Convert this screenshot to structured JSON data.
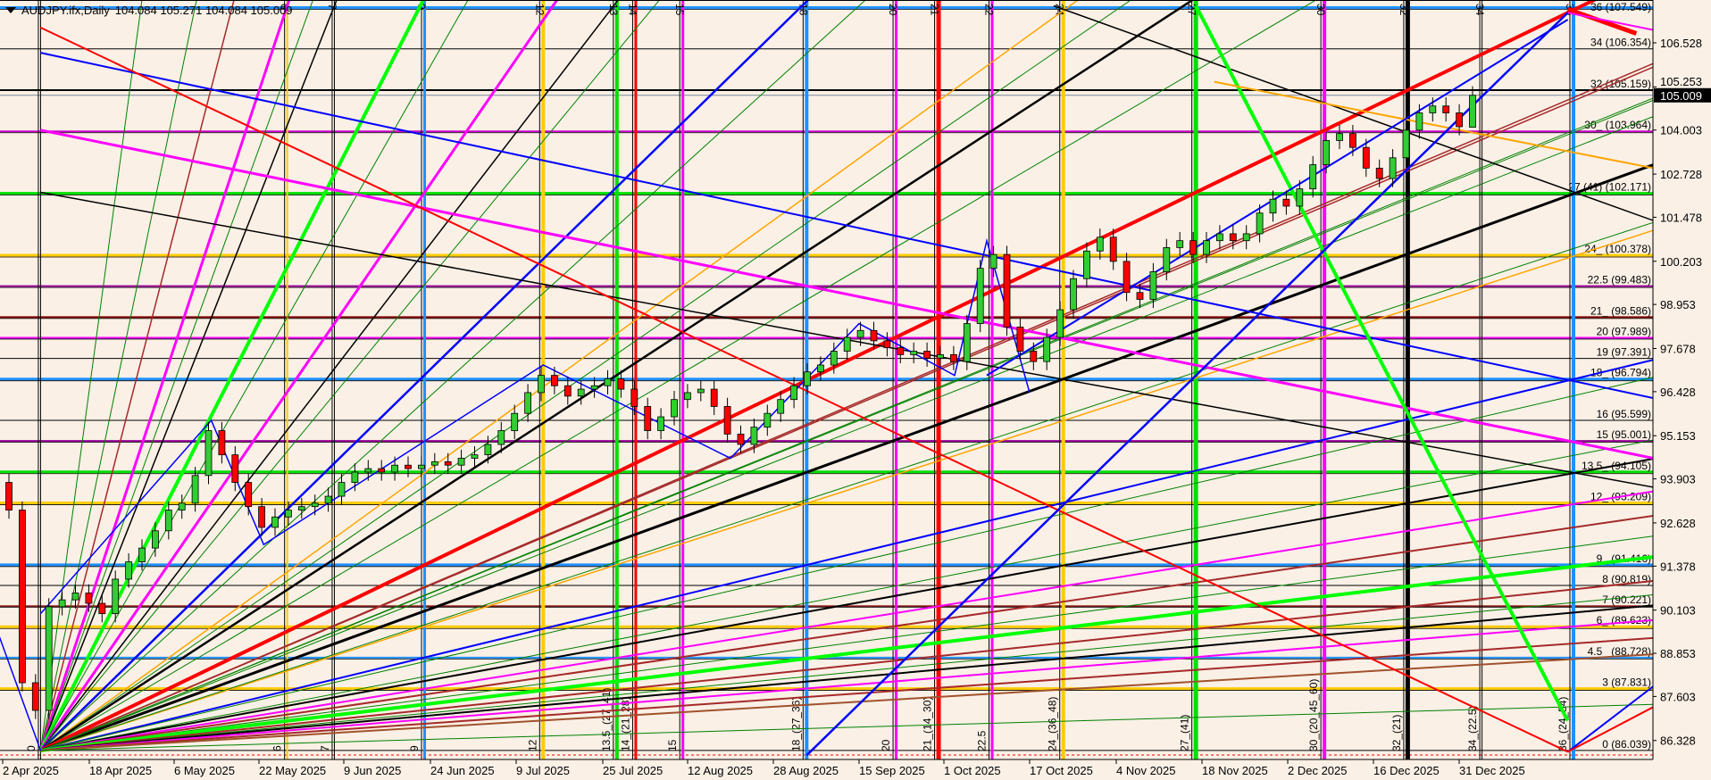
{
  "header": {
    "symbol": "AUDJPY.ifx,Daily",
    "ohlc": "104.084 105.271 104.084 105.009"
  },
  "chart_data": {
    "type": "candlestick",
    "symbol": "AUDJPY.ifx",
    "timeframe": "Daily",
    "last_bar": {
      "open": 104.084,
      "high": 105.271,
      "low": 104.084,
      "close": 105.009
    },
    "bid": 105.009,
    "ylim": [
      85.8,
      107.7
    ],
    "first_open": 93.8,
    "closes": [
      93.0,
      88.0,
      87.2,
      90.2,
      90.4,
      90.6,
      90.3,
      90.0,
      91.0,
      91.5,
      91.9,
      92.4,
      93.0,
      93.2,
      94.0,
      95.3,
      94.6,
      93.8,
      93.1,
      92.5,
      92.8,
      93.0,
      93.1,
      93.2,
      93.4,
      93.8,
      94.1,
      94.2,
      94.1,
      94.3,
      94.2,
      94.3,
      94.4,
      94.3,
      94.5,
      94.6,
      94.9,
      95.3,
      95.8,
      96.4,
      96.9,
      96.6,
      96.3,
      96.5,
      96.6,
      96.8,
      96.5,
      96.0,
      95.3,
      95.7,
      96.2,
      96.4,
      96.5,
      96.0,
      95.2,
      94.9,
      95.4,
      95.8,
      96.2,
      96.6,
      97.0,
      97.2,
      97.6,
      98.0,
      98.2,
      97.9,
      97.7,
      97.5,
      97.6,
      97.4,
      97.5,
      97.3,
      98.4,
      100.0,
      100.4,
      98.3,
      97.6,
      97.3,
      98.0,
      98.8,
      99.7,
      100.5,
      100.9,
      100.2,
      99.3,
      99.1,
      99.9,
      100.6,
      100.8,
      100.4,
      100.8,
      101.0,
      100.8,
      101.0,
      101.6,
      102.0,
      101.8,
      102.3,
      103.0,
      103.7,
      103.9,
      103.5,
      102.9,
      102.6,
      103.2,
      104.0,
      104.5,
      104.7,
      104.5,
      104.1,
      105.009
    ],
    "colors": {
      "bull": "#32cd32",
      "bear": "#ff0000",
      "outline": "#000000",
      "background": "#faf0e6",
      "bid_line": "#778899"
    },
    "price_ticks": [
      "106.528",
      "105.253",
      "104.003",
      "102.728",
      "101.478",
      "100.203",
      "98.953",
      "97.678",
      "96.428",
      "95.153",
      "93.903",
      "92.628",
      "91.378",
      "90.103",
      "88.853",
      "87.603",
      "86.328"
    ],
    "date_ticks": [
      {
        "label": "2 Apr 2025",
        "date": "2025-04-02"
      },
      {
        "label": "18 Apr 2025",
        "date": "2025-04-18"
      },
      {
        "label": "6 May 2025",
        "date": "2025-05-06"
      },
      {
        "label": "22 May 2025",
        "date": "2025-05-22"
      },
      {
        "label": "9 Jun 2025",
        "date": "2025-06-09"
      },
      {
        "label": "24 Jun 2025",
        "date": "2025-06-24"
      },
      {
        "label": "9 Jul 2025",
        "date": "2025-07-09"
      },
      {
        "label": "25 Jul 2025",
        "date": "2025-07-25"
      },
      {
        "label": "12 Aug 2025",
        "date": "2025-08-12"
      },
      {
        "label": "28 Aug 2025",
        "date": "2025-08-28"
      },
      {
        "label": "15 Sep 2025",
        "date": "2025-09-15"
      },
      {
        "label": "1 Oct 2025",
        "date": "2025-10-01"
      },
      {
        "label": "17 Oct 2025",
        "date": "2025-10-17"
      },
      {
        "label": "4 Nov 2025",
        "date": "2025-11-04"
      },
      {
        "label": "18 Nov 2025",
        "date": "2025-11-18"
      },
      {
        "label": "2 Dec 2025",
        "date": "2025-12-02"
      },
      {
        "label": "16 Dec 2025",
        "date": "2025-12-16"
      },
      {
        "label": "31 Dec 2025",
        "date": "2025-12-31"
      }
    ],
    "levels": [
      {
        "label": "36 (107.549)",
        "price": 107.549,
        "color": "#1e90ff",
        "w": 3
      },
      {
        "label": "34 (106.354)",
        "price": 106.354,
        "color": "#000000",
        "w": 1
      },
      {
        "label": "32 (105.159)",
        "price": 105.159,
        "color": "#000000",
        "w": 2
      },
      {
        "label": "30_ (103.964)",
        "price": 103.964,
        "color": "#cc00cc",
        "w": 2
      },
      {
        "label": "27 (41) (102.171)",
        "price": 102.171,
        "color": "#00e000",
        "w": 3
      },
      {
        "label": "24_ (100.378)",
        "price": 100.378,
        "color": "#ffcc00",
        "w": 3
      },
      {
        "label": "22.5 (99.483)",
        "price": 99.483,
        "color": "#990099",
        "w": 2
      },
      {
        "label": "21_ (98.586)",
        "price": 98.586,
        "color": "#800000",
        "w": 2
      },
      {
        "label": "20 (97.989)",
        "price": 97.989,
        "color": "#ff00ff",
        "w": 2
      },
      {
        "label": "19 (97.391)",
        "price": 97.391,
        "color": "#000000",
        "w": 1
      },
      {
        "label": "18_ (96.794)",
        "price": 96.794,
        "color": "#1e90ff",
        "w": 3
      },
      {
        "label": "16 (95.599)",
        "price": 95.599,
        "color": "#000000",
        "w": 1
      },
      {
        "label": "15 (95.001)",
        "price": 95.001,
        "color": "#990099",
        "w": 2
      },
      {
        "label": "13.5_ (94.105)",
        "price": 94.105,
        "color": "#00e000",
        "w": 3
      },
      {
        "label": "12_ (93.209)",
        "price": 93.209,
        "color": "#ffcc00",
        "w": 3
      },
      {
        "label": "9_ (91.416)",
        "price": 91.416,
        "color": "#1e90ff",
        "w": 3
      },
      {
        "label": "8 (90.819)",
        "price": 90.819,
        "color": "#000000",
        "w": 1
      },
      {
        "label": "7 (90.221)",
        "price": 90.221,
        "color": "#800000",
        "w": 1.5
      },
      {
        "label": "6_ (89.623)",
        "price": 89.623,
        "color": "#ffcc00",
        "w": 3
      },
      {
        "label": "4.5_ (88.728)",
        "price": 88.728,
        "color": "#1e90ff",
        "w": 2
      },
      {
        "label": "3 (87.831)",
        "price": 87.831,
        "color": "#ffcc00",
        "w": 3
      },
      {
        "label": "0 (86.039)",
        "price": 86.039,
        "color": "#000000",
        "w": 1
      }
    ],
    "verticals": [
      {
        "top": "",
        "bottom": "0",
        "date": "2025-04-09",
        "color": "#000000",
        "w": 1
      },
      {
        "top": "6",
        "bottom": "6",
        "date": "2025-05-28",
        "color": "#ffcc00",
        "w": 2
      },
      {
        "top": "7",
        "bottom": "7",
        "date": "2025-06-07",
        "color": "#000000",
        "w": 1
      },
      {
        "top": "9",
        "bottom": "9",
        "date": "2025-06-23",
        "color": "#1e90ff",
        "w": 3
      },
      {
        "top": "12",
        "bottom": "12",
        "date": "2025-07-14",
        "color": "#ffcc00",
        "w": 4
      },
      {
        "top": "13",
        "bottom": "13.5_(27_41)",
        "date": "2025-07-28",
        "color": "#00e000",
        "w": 4
      },
      {
        "top": "14",
        "bottom": "14_(21_28)",
        "date": "2025-08-01",
        "color": "#ff0000",
        "w": 3
      },
      {
        "top": "15",
        "bottom": "15",
        "date": "2025-08-11",
        "color": "#ff00ff",
        "w": 3
      },
      {
        "top": "18",
        "bottom": "18_(27_36)",
        "date": "2025-09-04",
        "color": "#1e90ff",
        "w": 4
      },
      {
        "top": "20",
        "bottom": "20",
        "date": "2025-09-22",
        "color": "#ff00ff",
        "w": 3
      },
      {
        "top": "21",
        "bottom": "21_(14_30)",
        "date": "2025-09-30",
        "color": "#ff0000",
        "w": 5
      },
      {
        "top": "22",
        "bottom": "22.5",
        "date": "2025-10-10",
        "color": "#ff00ff",
        "w": 3
      },
      {
        "top": "24",
        "bottom": "24_(36_48)",
        "date": "2025-10-24",
        "color": "#ffcc00",
        "w": 4
      },
      {
        "top": "27",
        "bottom": "27_(41)",
        "date": "2025-11-17",
        "color": "#00e000",
        "w": 5
      },
      {
        "top": "30",
        "bottom": "30_(20_45_60)",
        "date": "2025-12-08",
        "color": "#ff00ff",
        "w": 4
      },
      {
        "top": "32",
        "bottom": "32_(21)",
        "date": "2025-12-22",
        "color": "#000000",
        "w": 5
      },
      {
        "top": "34",
        "bottom": "34_(22.5)",
        "date": "2026-01-04",
        "color": "#000000",
        "w": 1
      },
      {
        "top": "36",
        "bottom": "36_(24_54)",
        "date": "2026-01-20",
        "color": "#1e90ff",
        "w": 4
      }
    ],
    "fan": {
      "origin": {
        "date": "2025-04-09",
        "price": 86.039
      },
      "rays": [
        {
          "date": "2025-04-29",
          "price": 107.6,
          "color": "#008000",
          "w": 1
        },
        {
          "date": "2025-05-10",
          "price": 107.6,
          "color": "#008000",
          "w": 1
        },
        {
          "date": "2025-05-17",
          "price": 107.6,
          "color": "#a52a2a",
          "w": 1.5
        },
        {
          "date": "2025-05-28",
          "price": 107.6,
          "color": "#ff00ff",
          "w": 3
        },
        {
          "date": "2025-06-02",
          "price": 107.6,
          "color": "#008000",
          "w": 1
        },
        {
          "date": "2025-06-07",
          "price": 107.6,
          "color": "#000000",
          "w": 1.5
        },
        {
          "date": "2025-06-21",
          "price": 107.19,
          "color": "#00ff00",
          "w": 4
        },
        {
          "date": "2025-06-30",
          "price": 107.6,
          "color": "#008000",
          "w": 1
        },
        {
          "date": "2025-07-14",
          "price": 107.19,
          "color": "#ff00ff",
          "w": 3
        },
        {
          "date": "2025-07-25",
          "price": 107.19,
          "color": "#000000",
          "w": 1.5
        },
        {
          "date": "2025-08-05",
          "price": 107.6,
          "color": "#008000",
          "w": 1
        },
        {
          "date": "2025-08-31",
          "price": 107.19,
          "color": "#0000ff",
          "w": 2.5
        },
        {
          "date": "2025-09-15",
          "price": 107.6,
          "color": "#008000",
          "w": 1
        },
        {
          "date": "2025-10-20",
          "price": 107.06,
          "color": "#ffa500",
          "w": 1.5
        },
        {
          "date": "2025-11-05",
          "price": 107.6,
          "color": "#008000",
          "w": 1
        },
        {
          "date": "2025-11-15",
          "price": 107.6,
          "color": "#000000",
          "w": 2.5
        },
        {
          "date": "2025-12-05",
          "price": 107.6,
          "color": "#008000",
          "w": 1
        },
        {
          "date": "2026-01-19",
          "price": 107.4,
          "color": "#ff0000",
          "w": 4
        },
        {
          "date": "2026-02-03",
          "price": 105.83,
          "color": "#a52a2a",
          "w": 1.5
        },
        {
          "date": "2026-02-03",
          "price": 104.93,
          "color": "#008000",
          "w": 1
        },
        {
          "date": "2025-12-22",
          "price": 102.9,
          "color": "#a52a2a",
          "w": 1.5
        },
        {
          "date": "2026-02-03",
          "price": 103.0,
          "color": "#000000",
          "w": 3
        },
        {
          "date": "2025-12-22",
          "price": 102.0,
          "color": "#008000",
          "w": 1
        },
        {
          "date": "2025-12-22",
          "price": 101.6,
          "color": "#008000",
          "w": 1
        },
        {
          "date": "2026-02-03",
          "price": 101.1,
          "color": "#ffa500",
          "w": 1.5
        },
        {
          "date": "2025-12-22",
          "price": 99.0,
          "color": "#008000",
          "w": 1
        },
        {
          "date": "2026-02-03",
          "price": 97.35,
          "color": "#0000ff",
          "w": 2
        },
        {
          "date": "2025-12-22",
          "price": 95.2,
          "color": "#008000",
          "w": 1
        },
        {
          "date": "2025-12-22",
          "price": 93.66,
          "color": "#008000",
          "w": 1
        },
        {
          "date": "2025-12-22",
          "price": 93.2,
          "color": "#000000",
          "w": 2
        },
        {
          "date": "2025-12-22",
          "price": 92.4,
          "color": "#ff00ff",
          "w": 2
        },
        {
          "date": "2025-12-22",
          "price": 91.8,
          "color": "#a52a2a",
          "w": 2
        },
        {
          "date": "2025-12-22",
          "price": 91.3,
          "color": "#008000",
          "w": 1
        },
        {
          "date": "2025-12-22",
          "price": 90.79,
          "color": "#00ff00",
          "w": 4
        },
        {
          "date": "2025-12-22",
          "price": 90.2,
          "color": "#a52a2a",
          "w": 2
        },
        {
          "date": "2025-12-22",
          "price": 89.86,
          "color": "#008000",
          "w": 1
        },
        {
          "date": "2025-12-22",
          "price": 89.6,
          "color": "#000000",
          "w": 2
        },
        {
          "date": "2025-12-22",
          "price": 89.24,
          "color": "#ff00ff",
          "w": 2
        },
        {
          "date": "2025-12-22",
          "price": 88.8,
          "color": "#a52a2a",
          "w": 2
        },
        {
          "date": "2025-12-22",
          "price": 88.4,
          "color": "#a0522d",
          "w": 2
        },
        {
          "date": "2025-12-22",
          "price": 87.17,
          "color": "#008000",
          "w": 1
        }
      ]
    },
    "trendlines": [
      {
        "from": [
          "2025-04-09",
          106.24
        ],
        "to": [
          "2026-02-03",
          96.24
        ],
        "color": "#0000ff",
        "w": 2
      },
      {
        "from": [
          "2025-04-09",
          104.0
        ],
        "to": [
          "2026-02-03",
          94.5
        ],
        "color": "#ff00ff",
        "w": 3
      },
      {
        "from": [
          "2025-04-09",
          102.2
        ],
        "to": [
          "2026-02-03",
          93.66
        ],
        "color": "#000000",
        "w": 1.5
      },
      {
        "from": [
          "2025-04-09",
          106.97
        ],
        "to": [
          "2026-01-19",
          86.0
        ],
        "color": "#ff0000",
        "w": 2
      },
      {
        "from": [
          "2025-10-22",
          107.6
        ],
        "to": [
          "2026-02-03",
          101.38
        ],
        "color": "#000000",
        "w": 1.5
      },
      {
        "from": [
          "2025-11-17",
          107.6
        ],
        "to": [
          "2026-01-19",
          86.9
        ],
        "color": "#00ff00",
        "w": 4
      },
      {
        "from": [
          "2025-11-20",
          105.4
        ],
        "to": [
          "2026-02-03",
          102.9
        ],
        "color": "#ffa500",
        "w": 2
      },
      {
        "from": [
          "2026-01-19",
          107.5
        ],
        "to": [
          "2026-01-31",
          106.8
        ],
        "color": "#ff0000",
        "w": 5
      },
      {
        "from": [
          "2026-01-19",
          107.4
        ],
        "to": [
          "2026-02-03",
          106.9
        ],
        "color": "#ff00ff",
        "w": 2
      },
      {
        "from": [
          "2025-09-04",
          85.9
        ],
        "to": [
          "2026-01-19",
          107.4
        ],
        "color": "#0000ff",
        "w": 2.5
      },
      {
        "from": [
          "2025-10-09",
          96.9
        ],
        "to": [
          "2026-01-19",
          107.2
        ],
        "color": "#0000ff",
        "w": 2
      },
      {
        "from": [
          "2026-01-19",
          86.0
        ],
        "to": [
          "2026-02-03",
          87.9
        ],
        "color": "#0000ff",
        "w": 2
      },
      {
        "from": [
          "2026-01-19",
          86.0
        ],
        "to": [
          "2026-02-03",
          87.3
        ],
        "color": "#ff0000",
        "w": 2
      },
      {
        "from": [
          "2025-04-01",
          89.5
        ],
        "to": [
          "2025-04-09",
          86.04
        ],
        "color": "#0000ff",
        "w": 1.5
      }
    ],
    "zigzag": {
      "color": "#0000ff",
      "w": 1.5,
      "points": [
        [
          "2025-04-09",
          90.0
        ],
        [
          "2025-05-13",
          95.6
        ],
        [
          "2025-05-23",
          92.0
        ],
        [
          "2025-07-14",
          97.2
        ],
        [
          "2025-08-20",
          94.5
        ],
        [
          "2025-09-15",
          98.4
        ],
        [
          "2025-10-03",
          96.9
        ],
        [
          "2025-10-09",
          100.8
        ],
        [
          "2025-10-17",
          96.4
        ]
      ]
    }
  }
}
